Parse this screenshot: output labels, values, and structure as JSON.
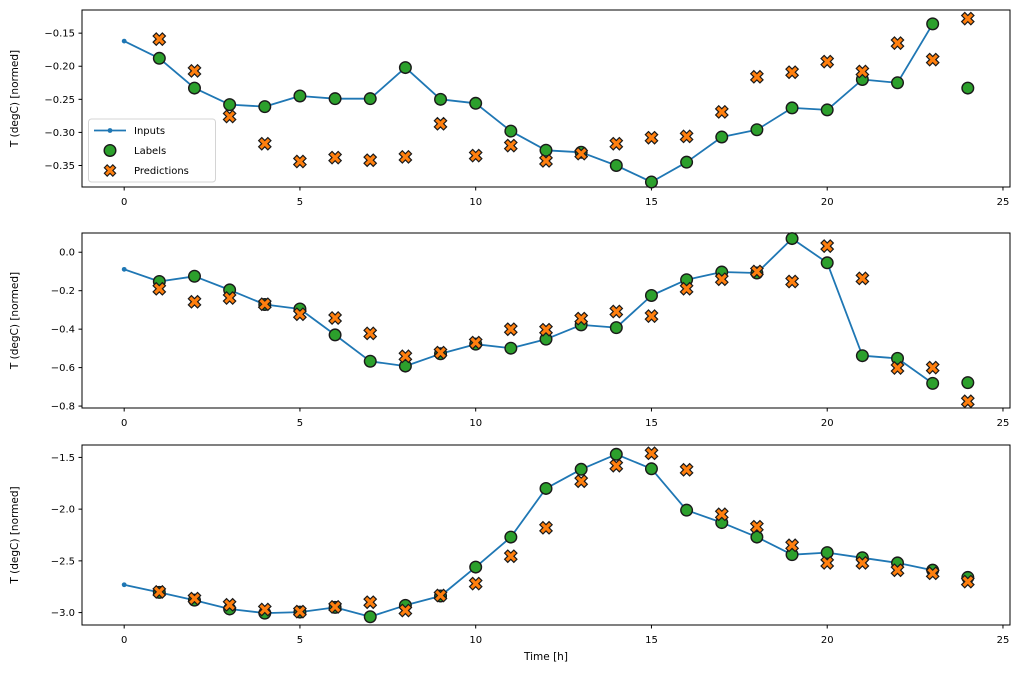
{
  "figure": {
    "background": "#ffffff",
    "xlabel": "Time [h]",
    "ylabel": "T (degC) [normed]",
    "colors": {
      "inputs": "#1f77b4",
      "labels": "#2ca02c",
      "predictions": "#ff7f0e",
      "marker_edge": "#1a1a1a",
      "spine": "#000000",
      "legend_border": "#d4d4d4"
    },
    "legend": {
      "position": "upper-left-of-first-subplot",
      "entries": [
        {
          "label": "Inputs",
          "marker": "line-dot-icon",
          "color": "#1f77b4"
        },
        {
          "label": "Labels",
          "marker": "circle-icon",
          "color": "#2ca02c"
        },
        {
          "label": "Predictions",
          "marker": "x-icon",
          "color": "#ff7f0e"
        }
      ]
    }
  },
  "chart_data": [
    {
      "type": "line",
      "title": "",
      "ylabel": "T (degC) [normed]",
      "xlabel": "",
      "xlim": [
        -1.2,
        25.2
      ],
      "ylim": [
        -0.3825,
        -0.115
      ],
      "xticks": [
        0,
        5,
        10,
        15,
        20,
        25
      ],
      "yticks": [
        -0.15,
        -0.2,
        -0.25,
        -0.3,
        -0.35
      ],
      "ytick_labels": [
        "−0.15",
        "−0.20",
        "−0.25",
        "−0.30",
        "−0.35"
      ],
      "xtick_labels": [
        "0",
        "5",
        "10",
        "15",
        "20",
        "25"
      ],
      "grid": false,
      "series": [
        {
          "name": "Inputs",
          "style": "line-dot",
          "color": "#1f77b4",
          "x": [
            0,
            1,
            2,
            3,
            4,
            5,
            6,
            7,
            8,
            9,
            10,
            11,
            12,
            13,
            14,
            15,
            16,
            17,
            18,
            19,
            20,
            21,
            22,
            23
          ],
          "y": [
            -0.162,
            -0.188,
            -0.233,
            -0.258,
            -0.261,
            -0.245,
            -0.249,
            -0.249,
            -0.202,
            -0.25,
            -0.256,
            -0.298,
            -0.327,
            -0.33,
            -0.35,
            -0.375,
            -0.345,
            -0.307,
            -0.296,
            -0.263,
            -0.266,
            -0.22,
            -0.225,
            -0.136
          ]
        },
        {
          "name": "Labels",
          "style": "scatter-circle",
          "color": "#2ca02c",
          "x": [
            1,
            2,
            3,
            4,
            5,
            6,
            7,
            8,
            9,
            10,
            11,
            12,
            13,
            14,
            15,
            16,
            17,
            18,
            19,
            20,
            21,
            22,
            23,
            24
          ],
          "y": [
            -0.188,
            -0.233,
            -0.258,
            -0.261,
            -0.245,
            -0.249,
            -0.249,
            -0.202,
            -0.25,
            -0.256,
            -0.298,
            -0.327,
            -0.33,
            -0.35,
            -0.375,
            -0.345,
            -0.307,
            -0.296,
            -0.263,
            -0.266,
            -0.22,
            -0.225,
            -0.136,
            -0.233
          ]
        },
        {
          "name": "Predictions",
          "style": "scatter-x",
          "color": "#ff7f0e",
          "x": [
            1,
            2,
            3,
            4,
            5,
            6,
            7,
            8,
            9,
            10,
            11,
            12,
            13,
            14,
            15,
            16,
            17,
            18,
            19,
            20,
            21,
            22,
            23,
            24
          ],
          "y": [
            -0.159,
            -0.207,
            -0.276,
            -0.317,
            -0.344,
            -0.338,
            -0.342,
            -0.337,
            -0.287,
            -0.335,
            -0.32,
            -0.343,
            -0.332,
            -0.317,
            -0.308,
            -0.306,
            -0.269,
            -0.216,
            -0.209,
            -0.193,
            -0.208,
            -0.165,
            -0.19,
            -0.128
          ]
        }
      ]
    },
    {
      "type": "line",
      "title": "",
      "ylabel": "T (degC) [normed]",
      "xlabel": "",
      "xlim": [
        -1.2,
        25.2
      ],
      "ylim": [
        -0.81,
        0.1
      ],
      "xticks": [
        0,
        5,
        10,
        15,
        20,
        25
      ],
      "yticks": [
        0.0,
        -0.2,
        -0.4,
        -0.6,
        -0.8
      ],
      "ytick_labels": [
        "0.0",
        "−0.2",
        "−0.4",
        "−0.6",
        "−0.8"
      ],
      "xtick_labels": [
        "0",
        "5",
        "10",
        "15",
        "20",
        "25"
      ],
      "grid": false,
      "series": [
        {
          "name": "Inputs",
          "style": "line-dot",
          "color": "#1f77b4",
          "x": [
            0,
            1,
            2,
            3,
            4,
            5,
            6,
            7,
            8,
            9,
            10,
            11,
            12,
            13,
            14,
            15,
            16,
            17,
            18,
            19,
            20,
            21,
            22,
            23
          ],
          "y": [
            -0.089,
            -0.152,
            -0.125,
            -0.196,
            -0.272,
            -0.295,
            -0.43,
            -0.567,
            -0.592,
            -0.528,
            -0.478,
            -0.499,
            -0.452,
            -0.378,
            -0.392,
            -0.225,
            -0.143,
            -0.103,
            -0.108,
            0.071,
            -0.055,
            -0.538,
            -0.552,
            -0.682
          ]
        },
        {
          "name": "Labels",
          "style": "scatter-circle",
          "color": "#2ca02c",
          "x": [
            1,
            2,
            3,
            4,
            5,
            6,
            7,
            8,
            9,
            10,
            11,
            12,
            13,
            14,
            15,
            16,
            17,
            18,
            19,
            20,
            21,
            22,
            23,
            24
          ],
          "y": [
            -0.152,
            -0.125,
            -0.196,
            -0.272,
            -0.295,
            -0.43,
            -0.567,
            -0.592,
            -0.528,
            -0.478,
            -0.499,
            -0.452,
            -0.378,
            -0.392,
            -0.225,
            -0.143,
            -0.103,
            -0.108,
            0.071,
            -0.055,
            -0.538,
            -0.552,
            -0.682,
            -0.678
          ]
        },
        {
          "name": "Predictions",
          "style": "scatter-x",
          "color": "#ff7f0e",
          "x": [
            1,
            2,
            3,
            4,
            5,
            6,
            7,
            8,
            9,
            10,
            11,
            12,
            13,
            14,
            15,
            16,
            17,
            18,
            19,
            20,
            21,
            22,
            23,
            24
          ],
          "y": [
            -0.19,
            -0.258,
            -0.238,
            -0.27,
            -0.322,
            -0.342,
            -0.422,
            -0.541,
            -0.522,
            -0.47,
            -0.4,
            -0.403,
            -0.345,
            -0.308,
            -0.332,
            -0.19,
            -0.14,
            -0.1,
            -0.152,
            0.032,
            -0.136,
            -0.602,
            -0.6,
            -0.775
          ]
        }
      ]
    },
    {
      "type": "line",
      "title": "",
      "ylabel": "T (degC) [normed]",
      "xlabel": "Time [h]",
      "xlim": [
        -1.2,
        25.2
      ],
      "ylim": [
        -3.12,
        -1.38
      ],
      "xticks": [
        0,
        5,
        10,
        15,
        20,
        25
      ],
      "yticks": [
        -1.5,
        -2.0,
        -2.5,
        -3.0
      ],
      "ytick_labels": [
        "−1.5",
        "−2.0",
        "−2.5",
        "−3.0"
      ],
      "xtick_labels": [
        "0",
        "5",
        "10",
        "15",
        "20",
        "25"
      ],
      "grid": false,
      "series": [
        {
          "name": "Inputs",
          "style": "line-dot",
          "color": "#1f77b4",
          "x": [
            0,
            1,
            2,
            3,
            4,
            5,
            6,
            7,
            8,
            9,
            10,
            11,
            12,
            13,
            14,
            15,
            16,
            17,
            18,
            19,
            20,
            21,
            22,
            23
          ],
          "y": [
            -2.731,
            -2.805,
            -2.88,
            -2.965,
            -3.005,
            -2.995,
            -2.95,
            -3.04,
            -2.93,
            -2.84,
            -2.56,
            -2.27,
            -1.8,
            -1.615,
            -1.47,
            -1.61,
            -2.01,
            -2.13,
            -2.27,
            -2.44,
            -2.42,
            -2.47,
            -2.52,
            -2.59
          ]
        },
        {
          "name": "Labels",
          "style": "scatter-circle",
          "color": "#2ca02c",
          "x": [
            1,
            2,
            3,
            4,
            5,
            6,
            7,
            8,
            9,
            10,
            11,
            12,
            13,
            14,
            15,
            16,
            17,
            18,
            19,
            20,
            21,
            22,
            23,
            24
          ],
          "y": [
            -2.805,
            -2.88,
            -2.965,
            -3.005,
            -2.995,
            -2.95,
            -3.04,
            -2.93,
            -2.84,
            -2.56,
            -2.27,
            -1.8,
            -1.615,
            -1.47,
            -1.61,
            -2.01,
            -2.13,
            -2.27,
            -2.44,
            -2.42,
            -2.47,
            -2.52,
            -2.59,
            -2.66
          ]
        },
        {
          "name": "Predictions",
          "style": "scatter-x",
          "color": "#ff7f0e",
          "x": [
            1,
            2,
            3,
            4,
            5,
            6,
            7,
            8,
            9,
            10,
            11,
            12,
            13,
            14,
            15,
            16,
            17,
            18,
            19,
            20,
            21,
            22,
            23,
            24
          ],
          "y": [
            -2.8,
            -2.865,
            -2.925,
            -2.97,
            -2.99,
            -2.945,
            -2.9,
            -2.98,
            -2.835,
            -2.72,
            -2.455,
            -2.18,
            -1.73,
            -1.58,
            -1.46,
            -1.62,
            -2.05,
            -2.17,
            -2.35,
            -2.52,
            -2.52,
            -2.59,
            -2.62,
            -2.7
          ]
        }
      ]
    }
  ]
}
